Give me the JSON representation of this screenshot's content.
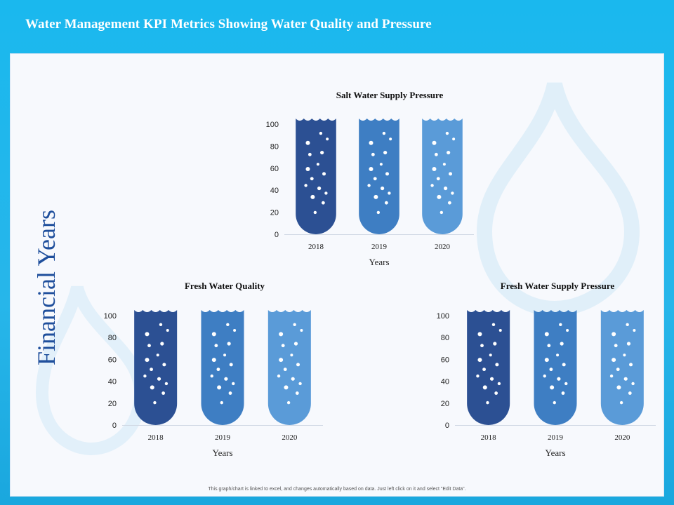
{
  "title": "Water Management KPI Metrics Showing Water Quality and Pressure",
  "side_label": "Financial Years",
  "footnote": "This graph/chart is linked to excel, and changes automatically based on data. Just left click on it and select \"Edit Data\".",
  "colors": {
    "series": [
      "#2c5093",
      "#3e7ec3",
      "#5a9bd8"
    ],
    "background": "#f7f9fd",
    "accent": "#1ab8ee"
  },
  "chart_data": [
    {
      "type": "bar",
      "title": "Salt Water Supply Pressure",
      "categories": [
        "2018",
        "2019",
        "2020"
      ],
      "values": [
        100,
        100,
        100
      ],
      "xlabel": "Years",
      "ylabel": "",
      "ylim": [
        0,
        100
      ],
      "yticks": [
        0,
        20,
        40,
        60,
        80,
        100
      ],
      "grid": false,
      "legend": "none"
    },
    {
      "type": "bar",
      "title": "Fresh Water Quality",
      "categories": [
        "2018",
        "2019",
        "2020"
      ],
      "values": [
        100,
        100,
        100
      ],
      "xlabel": "Years",
      "ylabel": "",
      "ylim": [
        0,
        100
      ],
      "yticks": [
        0,
        20,
        40,
        60,
        80,
        100
      ],
      "grid": false,
      "legend": "none"
    },
    {
      "type": "bar",
      "title": "Fresh Water Supply Pressure",
      "categories": [
        "2018",
        "2019",
        "2020"
      ],
      "values": [
        100,
        100,
        100
      ],
      "xlabel": "Years",
      "ylabel": "",
      "ylim": [
        0,
        100
      ],
      "yticks": [
        0,
        20,
        40,
        60,
        80,
        100
      ],
      "grid": false,
      "legend": "none"
    }
  ]
}
